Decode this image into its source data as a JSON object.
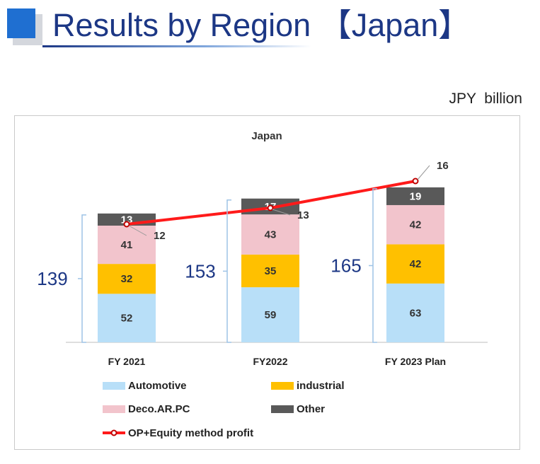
{
  "header": {
    "title": "Results by Region 【Japan】",
    "unit": "JPY  billion"
  },
  "colors": {
    "automotive": "#b8dff8",
    "industrial": "#ffc000",
    "deco": "#f2c4cc",
    "other": "#595959",
    "line": "#ff1a1a",
    "title": "#1c3785",
    "accent": "#1f6fd1"
  },
  "chart_data": {
    "type": "bar",
    "stacked": true,
    "title": "Japan",
    "categories": [
      "FY 2021",
      "FY2022",
      "FY 2023 Plan"
    ],
    "series": [
      {
        "name": "Automotive",
        "values": [
          52,
          59,
          63
        ]
      },
      {
        "name": "industrial",
        "values": [
          32,
          35,
          42
        ]
      },
      {
        "name": "Deco.AR.PC",
        "values": [
          41,
          43,
          42
        ]
      },
      {
        "name": "Other",
        "values": [
          13,
          17,
          19
        ]
      }
    ],
    "totals": [
      139,
      153,
      165
    ],
    "line_series": {
      "name": "OP+Equity method profit",
      "values": [
        12,
        13,
        16
      ]
    },
    "legend_position": "bottom",
    "grid": false
  }
}
